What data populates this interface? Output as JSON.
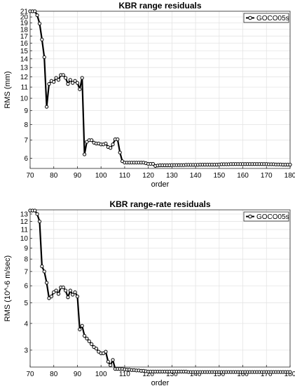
{
  "chart_data": [
    {
      "type": "line",
      "title": "KBR range residuals",
      "xlabel": "order",
      "ylabel": "RMS (mm)",
      "scale": "log",
      "xlim": [
        70,
        180
      ],
      "ylim": [
        5.5,
        21
      ],
      "xticks": [
        70,
        80,
        90,
        100,
        110,
        120,
        130,
        140,
        150,
        160,
        170,
        180
      ],
      "yticks": [
        6,
        7,
        8,
        9,
        10,
        11,
        12,
        13,
        14,
        15,
        16,
        17,
        18,
        19,
        20,
        21
      ],
      "grid": true,
      "legend_position": "top-right",
      "series": [
        {
          "name": "GOCO05s",
          "color": "#000000",
          "x": [
            70,
            71,
            72,
            73,
            74,
            75,
            76,
            77,
            78,
            79,
            80,
            81,
            82,
            83,
            84,
            85,
            86,
            87,
            88,
            89,
            90,
            91,
            92,
            93,
            94,
            95,
            96,
            97,
            98,
            99,
            100,
            101,
            102,
            103,
            104,
            105,
            106,
            107,
            108,
            109,
            110,
            111,
            112,
            113,
            114,
            115,
            116,
            117,
            118,
            119,
            120,
            121,
            122,
            123,
            124,
            125,
            126,
            127,
            128,
            129,
            130,
            131,
            132,
            133,
            134,
            135,
            136,
            137,
            138,
            139,
            140,
            141,
            142,
            143,
            144,
            145,
            146,
            147,
            148,
            149,
            150,
            151,
            152,
            153,
            154,
            155,
            156,
            157,
            158,
            159,
            160,
            161,
            162,
            163,
            164,
            165,
            166,
            167,
            168,
            169,
            170,
            171,
            172,
            173,
            174,
            175,
            176,
            177,
            178,
            179,
            180
          ],
          "y": [
            21,
            21,
            21,
            20.3,
            18.9,
            16.5,
            14.2,
            9.3,
            11.3,
            11.6,
            11.5,
            11.9,
            11.7,
            12.2,
            12.2,
            11.9,
            11.3,
            11.7,
            11.4,
            11.6,
            11.4,
            10.8,
            11.9,
            6.2,
            6.9,
            7.0,
            7.0,
            6.85,
            6.8,
            6.8,
            6.75,
            6.75,
            6.8,
            6.6,
            6.55,
            6.75,
            7.05,
            7.05,
            6.3,
            5.85,
            5.78,
            5.78,
            5.78,
            5.78,
            5.78,
            5.78,
            5.78,
            5.78,
            5.78,
            5.75,
            5.72,
            5.72,
            5.72,
            5.62,
            5.64,
            5.65,
            5.65,
            5.65,
            5.65,
            5.65,
            5.66,
            5.66,
            5.66,
            5.66,
            5.66,
            5.66,
            5.67,
            5.67,
            5.67,
            5.67,
            5.67,
            5.67,
            5.68,
            5.68,
            5.68,
            5.68,
            5.68,
            5.68,
            5.68,
            5.68,
            5.69,
            5.7,
            5.7,
            5.7,
            5.7,
            5.71,
            5.71,
            5.71,
            5.71,
            5.71,
            5.71,
            5.71,
            5.71,
            5.71,
            5.71,
            5.71,
            5.71,
            5.71,
            5.71,
            5.71,
            5.71,
            5.7,
            5.7,
            5.7,
            5.69,
            5.69,
            5.69,
            5.68,
            5.68,
            5.68,
            5.68
          ]
        }
      ]
    },
    {
      "type": "line",
      "title": "KBR range-rate residuals",
      "xlabel": "order",
      "ylabel": "RMS (10^-6 m/sec)",
      "scale": "log",
      "xlim": [
        70,
        180
      ],
      "ylim": [
        2.5,
        13.6
      ],
      "xticks": [
        70,
        80,
        90,
        100,
        110,
        120,
        130,
        140,
        150,
        160,
        170,
        180
      ],
      "yticks": [
        3,
        4,
        5,
        6,
        7,
        8,
        9,
        10,
        11,
        12,
        13
      ],
      "grid": true,
      "legend_position": "top-right",
      "series": [
        {
          "name": "GOCO05s",
          "color": "#000000",
          "x": [
            70,
            71,
            72,
            73,
            74,
            75,
            76,
            77,
            78,
            79,
            80,
            81,
            82,
            83,
            84,
            85,
            86,
            87,
            88,
            89,
            90,
            91,
            92,
            93,
            94,
            95,
            96,
            97,
            98,
            99,
            100,
            101,
            102,
            103,
            104,
            105,
            106,
            107,
            108,
            109,
            110,
            111,
            112,
            113,
            114,
            115,
            116,
            117,
            118,
            119,
            120,
            121,
            122,
            123,
            124,
            125,
            126,
            127,
            128,
            129,
            130,
            131,
            132,
            133,
            134,
            135,
            136,
            137,
            138,
            139,
            140,
            141,
            142,
            143,
            144,
            145,
            146,
            147,
            148,
            149,
            150,
            151,
            152,
            153,
            154,
            155,
            156,
            157,
            158,
            159,
            160,
            161,
            162,
            163,
            164,
            165,
            166,
            167,
            168,
            169,
            170,
            171,
            172,
            173,
            174,
            175,
            176,
            177,
            178,
            179,
            180
          ],
          "y": [
            13.5,
            13.5,
            13.5,
            13.0,
            12.0,
            7.4,
            7.0,
            6.2,
            5.25,
            5.35,
            5.6,
            5.7,
            5.5,
            5.9,
            5.9,
            5.7,
            5.3,
            5.7,
            5.45,
            5.6,
            5.35,
            3.75,
            3.9,
            3.5,
            3.4,
            3.3,
            3.2,
            3.1,
            3.05,
            2.95,
            2.9,
            2.9,
            2.95,
            2.65,
            2.55,
            2.7,
            2.45,
            2.45,
            2.45,
            2.45,
            2.44,
            2.43,
            2.43,
            2.42,
            2.42,
            2.41,
            2.41,
            2.4,
            2.4,
            2.39,
            2.38,
            2.38,
            2.38,
            2.38,
            2.38,
            2.38,
            2.38,
            2.38,
            2.38,
            2.38,
            2.38,
            2.38,
            2.38,
            2.38,
            2.38,
            2.38,
            2.38,
            2.37,
            2.37,
            2.37,
            2.37,
            2.37,
            2.37,
            2.37,
            2.37,
            2.37,
            2.37,
            2.37,
            2.37,
            2.37,
            2.37,
            2.37,
            2.37,
            2.37,
            2.37,
            2.37,
            2.37,
            2.37,
            2.37,
            2.37,
            2.37,
            2.37,
            2.37,
            2.37,
            2.37,
            2.37,
            2.37,
            2.37,
            2.37,
            2.37,
            2.37,
            2.37,
            2.37,
            2.37,
            2.37,
            2.37,
            2.37,
            2.37,
            2.37,
            2.37,
            2.37
          ]
        }
      ]
    }
  ]
}
